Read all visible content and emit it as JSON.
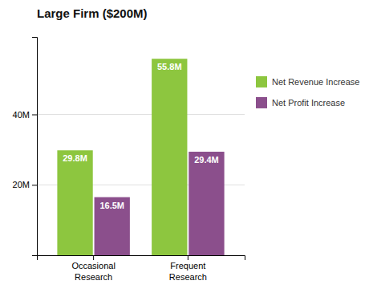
{
  "chart_data": {
    "type": "bar",
    "title": "Large Firm ($200M)",
    "categories": [
      "Occasional\nResearch",
      "Frequent\nResearch"
    ],
    "series": [
      {
        "name": "Net Revenue Increase",
        "color": "#8dc63f",
        "values": [
          29.8,
          55.8
        ],
        "value_labels": [
          "29.8M",
          "55.8M"
        ]
      },
      {
        "name": "Net Profit Increase",
        "color": "#8b4f8c",
        "values": [
          16.5,
          29.4
        ],
        "value_labels": [
          "16.5M",
          "29.4M"
        ]
      }
    ],
    "ylim": [
      0,
      62
    ],
    "yticks": [
      {
        "value": 0,
        "label": null
      },
      {
        "value": 20,
        "label": "20M"
      },
      {
        "value": 40,
        "label": "40M"
      }
    ],
    "grid": true,
    "legend": "right",
    "data_labels": true
  }
}
